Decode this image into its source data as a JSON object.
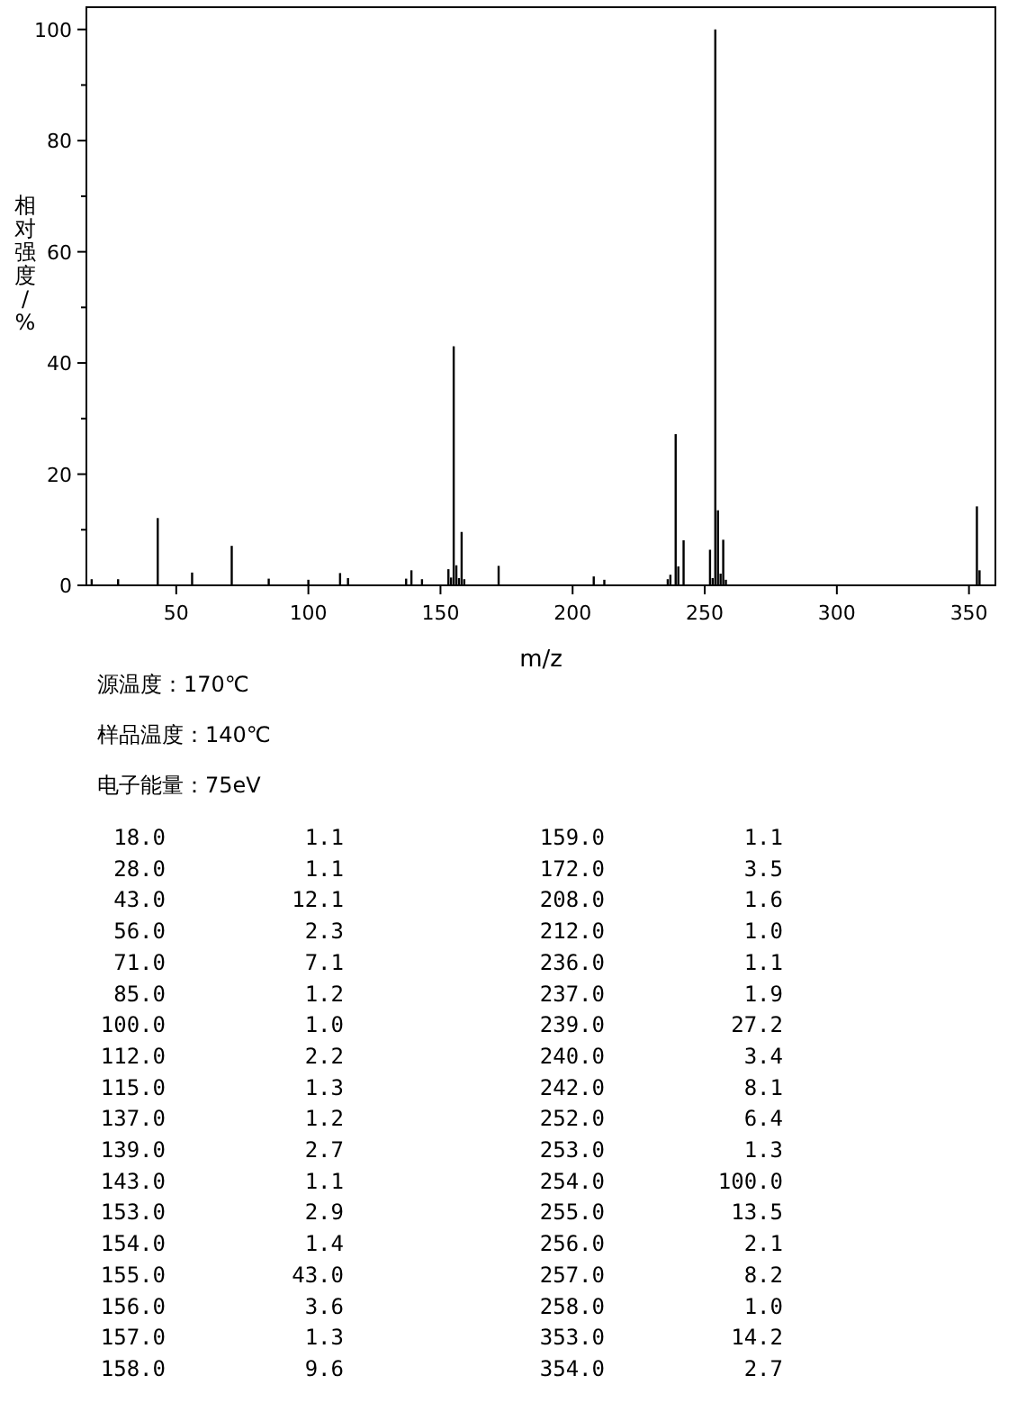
{
  "chart_data": {
    "type": "bar",
    "xlabel": "m/z",
    "ylabel": "相对强度/%",
    "x": [
      18,
      28,
      43,
      56,
      71,
      85,
      100,
      112,
      115,
      137,
      139,
      143,
      153,
      154,
      155,
      156,
      157,
      158,
      159,
      172,
      208,
      212,
      236,
      237,
      239,
      240,
      242,
      252,
      253,
      254,
      255,
      256,
      257,
      258,
      353,
      354
    ],
    "values": [
      1.1,
      1.1,
      12.1,
      2.3,
      7.1,
      1.2,
      1.0,
      2.2,
      1.3,
      1.2,
      2.7,
      1.1,
      2.9,
      1.4,
      43.0,
      3.6,
      1.3,
      9.6,
      1.1,
      3.5,
      1.6,
      1.0,
      1.1,
      1.9,
      27.2,
      3.4,
      8.1,
      6.4,
      1.3,
      100.0,
      13.5,
      2.1,
      8.2,
      1.0,
      14.2,
      2.7
    ],
    "color": "#000000",
    "xlim": [
      16,
      360
    ],
    "ylim": [
      0,
      104
    ],
    "xticks": [
      50,
      100,
      150,
      200,
      250,
      300,
      350
    ],
    "yticks": [
      0,
      {
        "value": 10,
        "label": null
      },
      20,
      {
        "value": 30,
        "label": null
      },
      40,
      {
        "value": 50,
        "label": null
      },
      60,
      {
        "value": 70,
        "label": null
      },
      80,
      {
        "value": 90,
        "label": null
      },
      100
    ],
    "annotations": [
      "源温度：170℃",
      "样品温度：140℃",
      "电子能量：75eV",
      "18.0 1.1",
      "28.0 1.1",
      "43.0 12.1",
      "56.0 2.3",
      "71.0 7.1",
      "85.0 1.2",
      "100.0 1.0",
      "112.0 2.2",
      "115.0 1.3",
      "137.0 1.2",
      "139.0 2.7",
      "143.0 1.1",
      "153.0 2.9",
      "154.0 1.4",
      "155.0 43.0",
      "156.0 3.6",
      "157.0 1.3",
      "158.0 9.6",
      "159.0 1.1",
      "172.0 3.5",
      "208.0 1.6",
      "212.0 1.0",
      "236.0 1.1",
      "237.0 1.9",
      "239.0 27.2",
      "240.0 3.4",
      "242.0 8.1",
      "252.0 6.4",
      "253.0 1.3",
      "254.0 100.0",
      "255.0 13.5",
      "256.0 2.1",
      "257.0 8.2",
      "258.0 1.0",
      "353.0 14.2",
      "354.0 2.7"
    ]
  }
}
